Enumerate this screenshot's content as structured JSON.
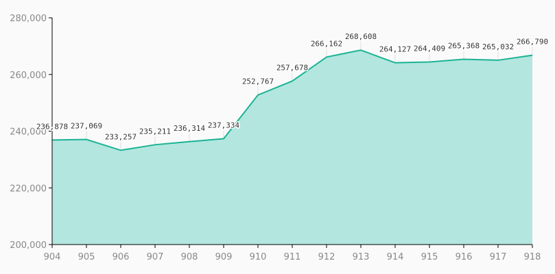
{
  "chart_data": {
    "type": "area",
    "title": "",
    "xlabel": "",
    "ylabel": "",
    "categories": [
      "904",
      "905",
      "906",
      "907",
      "908",
      "909",
      "910",
      "911",
      "912",
      "913",
      "914",
      "915",
      "916",
      "917",
      "918"
    ],
    "values": [
      236878,
      237069,
      233257,
      235211,
      236314,
      237334,
      252767,
      257678,
      266162,
      268608,
      264127,
      264409,
      265368,
      265032,
      266790
    ],
    "data_labels": [
      "236,878",
      "237,069",
      "233,257",
      "235,211",
      "236,314",
      "237,334",
      "252,767",
      "257,678",
      "266,162",
      "268,608",
      "264,127",
      "264,409",
      "265,368",
      "265,032",
      "266,790"
    ],
    "ylim": [
      200000,
      280000
    ],
    "yticks": [
      200000,
      220000,
      240000,
      260000,
      280000
    ],
    "ytick_labels": [
      "200,000",
      "220,000",
      "240,000",
      "260,000",
      "280,000"
    ],
    "grid": false,
    "legend": "none",
    "colors": {
      "line": "#1ab394",
      "fill": "#b3e6df"
    }
  }
}
